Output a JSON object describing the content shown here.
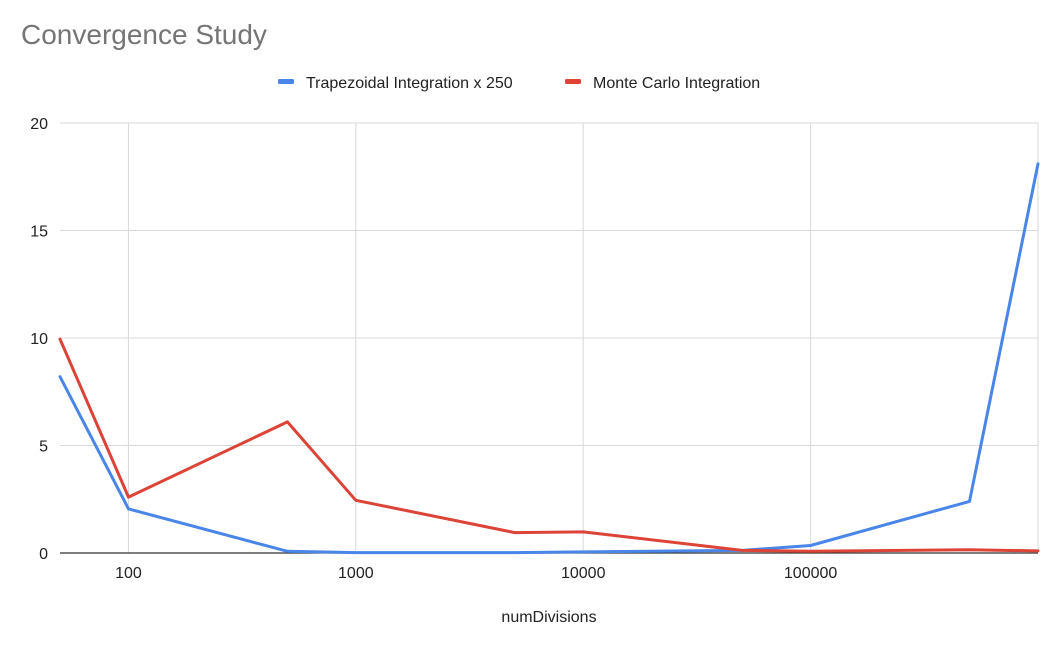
{
  "chart_data": {
    "type": "line",
    "title": "Convergence Study",
    "xlabel": "numDivisions",
    "ylabel": "",
    "x_scale": "log",
    "x": [
      50,
      100,
      500,
      1000,
      5000,
      10000,
      50000,
      100000,
      500000,
      1000000
    ],
    "x_tick_labels": [
      "100",
      "1000",
      "10000",
      "100000"
    ],
    "x_tick_values": [
      100,
      1000,
      10000,
      100000
    ],
    "y_ticks": [
      0,
      5,
      10,
      15,
      20
    ],
    "ylim": [
      0,
      20
    ],
    "grid": true,
    "legend_position": "top",
    "series": [
      {
        "name": "Trapezoidal Integration x 250",
        "color": "#4a86e8",
        "values": [
          8.2,
          2.05,
          0.08,
          0.02,
          0.02,
          0.05,
          0.12,
          0.35,
          2.4,
          18.1
        ]
      },
      {
        "name": "Monte Carlo Integration",
        "color": "#db4437",
        "values": [
          9.95,
          2.6,
          6.1,
          2.45,
          0.95,
          0.98,
          0.12,
          0.08,
          0.15,
          0.1
        ]
      }
    ]
  }
}
